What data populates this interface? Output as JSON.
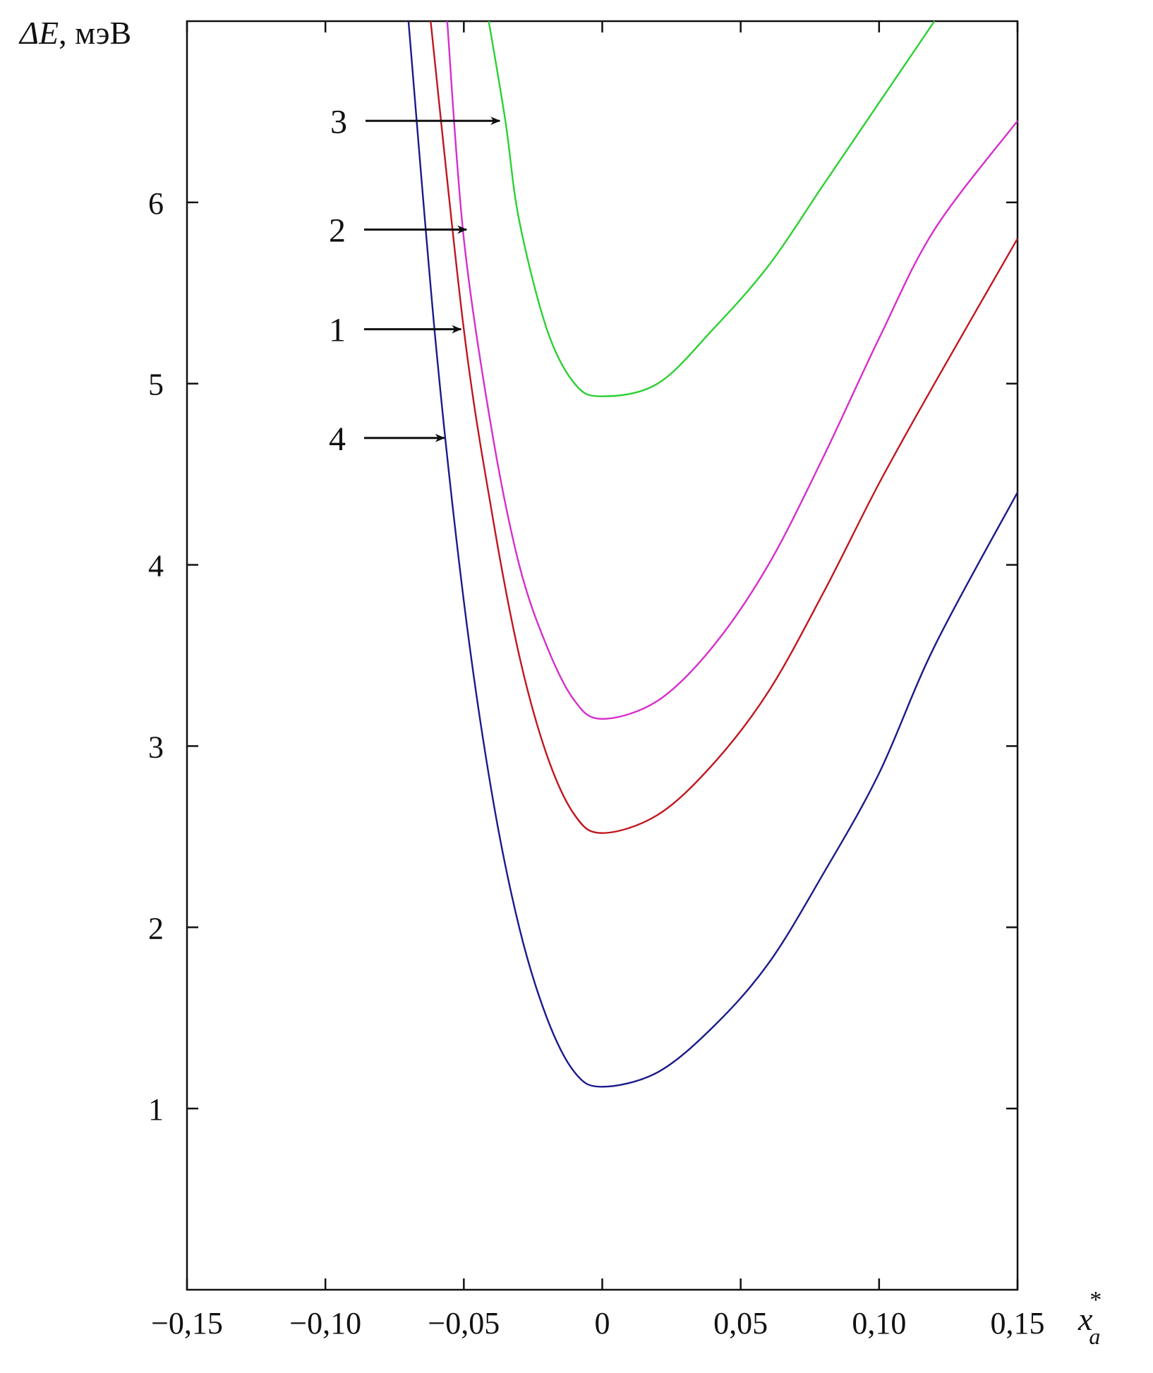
{
  "chart_data": {
    "type": "line",
    "ylabel_symbol": "ΔE",
    "ylabel_unit": ", мэВ",
    "xlabel_base": "x",
    "xlabel_sup": "*",
    "xlabel_sub": "a",
    "xlim": [
      -0.15,
      0.15
    ],
    "ylim": [
      0,
      7
    ],
    "x_ticks": [
      -0.15,
      -0.1,
      -0.05,
      0,
      0.05,
      0.1,
      0.15
    ],
    "x_tick_labels": [
      "−0,15",
      "−0,10",
      "−0,05",
      "0",
      "0,05",
      "0,10",
      "0,15"
    ],
    "y_ticks": [
      1,
      2,
      3,
      4,
      5,
      6
    ],
    "y_tick_labels": [
      "1",
      "2",
      "3",
      "4",
      "5",
      "6"
    ],
    "grid": false,
    "series": [
      {
        "label": "1",
        "color": "#c0161e",
        "x": [
          -0.062,
          -0.05,
          -0.04,
          -0.03,
          -0.02,
          -0.01,
          0,
          0.02,
          0.04,
          0.06,
          0.08,
          0.1,
          0.12,
          0.15
        ],
        "y": [
          7.0,
          5.3,
          4.3,
          3.5,
          2.95,
          2.62,
          2.52,
          2.62,
          2.9,
          3.3,
          3.85,
          4.45,
          5.0,
          5.8
        ],
        "arrow_at": [
          -0.05,
          5.3
        ]
      },
      {
        "label": "2",
        "color": "#d62ecc",
        "x": [
          -0.056,
          -0.05,
          -0.04,
          -0.03,
          -0.02,
          -0.01,
          0,
          0.02,
          0.04,
          0.06,
          0.08,
          0.1,
          0.12,
          0.15
        ],
        "y": [
          7.0,
          5.8,
          4.75,
          4.0,
          3.55,
          3.25,
          3.15,
          3.25,
          3.55,
          4.0,
          4.6,
          5.25,
          5.85,
          6.45
        ],
        "arrow_at": [
          -0.048,
          5.85
        ]
      },
      {
        "label": "3",
        "color": "#2bd033",
        "x": [
          -0.041,
          -0.035,
          -0.03,
          -0.02,
          -0.01,
          0,
          0.02,
          0.04,
          0.06,
          0.08,
          0.1,
          0.12
        ],
        "y": [
          7.0,
          6.45,
          5.9,
          5.3,
          5.0,
          4.93,
          5.0,
          5.3,
          5.65,
          6.1,
          6.55,
          7.0
        ],
        "arrow_at": [
          -0.036,
          6.45
        ]
      },
      {
        "label": "4",
        "color": "#1a1a8c",
        "x": [
          -0.07,
          -0.06,
          -0.05,
          -0.04,
          -0.03,
          -0.02,
          -0.01,
          0,
          0.02,
          0.04,
          0.06,
          0.08,
          0.1,
          0.12,
          0.15
        ],
        "y": [
          7.0,
          5.2,
          3.8,
          2.75,
          2.0,
          1.5,
          1.2,
          1.12,
          1.2,
          1.45,
          1.8,
          2.3,
          2.85,
          3.55,
          4.4
        ],
        "arrow_at": [
          -0.056,
          4.7
        ]
      }
    ],
    "annotations": [
      {
        "text": "3",
        "series": "3"
      },
      {
        "text": "2",
        "series": "2"
      },
      {
        "text": "1",
        "series": "1"
      },
      {
        "text": "4",
        "series": "4"
      }
    ]
  }
}
